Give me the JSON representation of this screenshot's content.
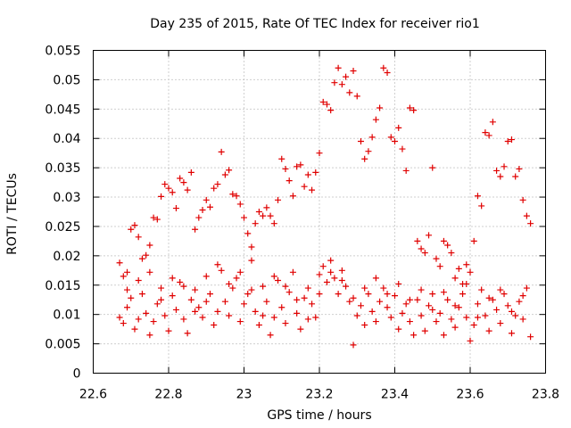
{
  "chart_data": {
    "type": "scatter",
    "title": "Day 235 of 2015, Rate Of TEC Index for receiver rio1",
    "xlabel": "GPS time / hours",
    "ylabel": "ROTI / TECUs",
    "xlim": [
      22.6,
      23.8
    ],
    "ylim": [
      0,
      0.055
    ],
    "xticks": [
      "22.6",
      "22.8",
      "23",
      "23.2",
      "23.4",
      "23.6",
      "23.8"
    ],
    "yticks": [
      "0",
      "0.005",
      "0.01",
      "0.015",
      "0.02",
      "0.025",
      "0.03",
      "0.035",
      "0.04",
      "0.045",
      "0.05",
      "0.055"
    ],
    "grid": true,
    "marker": "+",
    "color": "#e00000",
    "x_range_of_points": [
      22.668,
      23.757
    ],
    "series": [
      {
        "name": "rio1",
        "points": [
          [
            22.67,
            0.0188
          ],
          [
            22.68,
            0.0165
          ],
          [
            22.69,
            0.0172
          ],
          [
            22.7,
            0.0245
          ],
          [
            22.71,
            0.0252
          ],
          [
            22.72,
            0.0232
          ],
          [
            22.73,
            0.0195
          ],
          [
            22.74,
            0.0201
          ],
          [
            22.75,
            0.0218
          ],
          [
            22.76,
            0.0265
          ],
          [
            22.77,
            0.0262
          ],
          [
            22.78,
            0.0301
          ],
          [
            22.79,
            0.0322
          ],
          [
            22.8,
            0.0315
          ],
          [
            22.81,
            0.0308
          ],
          [
            22.82,
            0.0281
          ],
          [
            22.83,
            0.0332
          ],
          [
            22.84,
            0.0325
          ],
          [
            22.85,
            0.0312
          ],
          [
            22.86,
            0.0342
          ],
          [
            22.87,
            0.0245
          ],
          [
            22.88,
            0.0265
          ],
          [
            22.89,
            0.0278
          ],
          [
            22.9,
            0.0295
          ],
          [
            22.91,
            0.0283
          ],
          [
            22.92,
            0.0315
          ],
          [
            22.93,
            0.0322
          ],
          [
            22.94,
            0.0377
          ],
          [
            22.95,
            0.0338
          ],
          [
            22.96,
            0.0346
          ],
          [
            22.97,
            0.0305
          ],
          [
            22.98,
            0.0302
          ],
          [
            22.99,
            0.0288
          ],
          [
            23.0,
            0.0265
          ],
          [
            23.01,
            0.0238
          ],
          [
            23.02,
            0.0215
          ],
          [
            23.03,
            0.0255
          ],
          [
            23.04,
            0.0275
          ],
          [
            23.05,
            0.0268
          ],
          [
            23.06,
            0.0282
          ],
          [
            23.07,
            0.0268
          ],
          [
            23.08,
            0.0255
          ],
          [
            23.09,
            0.0295
          ],
          [
            23.1,
            0.0365
          ],
          [
            23.11,
            0.0348
          ],
          [
            23.12,
            0.0328
          ],
          [
            23.13,
            0.0302
          ],
          [
            23.14,
            0.0352
          ],
          [
            23.15,
            0.0355
          ],
          [
            23.16,
            0.0318
          ],
          [
            23.17,
            0.0338
          ],
          [
            23.18,
            0.0312
          ],
          [
            23.19,
            0.0342
          ],
          [
            23.2,
            0.0375
          ],
          [
            23.21,
            0.0462
          ],
          [
            23.22,
            0.0458
          ],
          [
            23.23,
            0.0448
          ],
          [
            23.24,
            0.0495
          ],
          [
            23.25,
            0.052
          ],
          [
            23.26,
            0.0492
          ],
          [
            23.27,
            0.0505
          ],
          [
            23.28,
            0.0478
          ],
          [
            23.29,
            0.0515
          ],
          [
            23.3,
            0.0472
          ],
          [
            23.31,
            0.0395
          ],
          [
            23.32,
            0.0365
          ],
          [
            23.33,
            0.0378
          ],
          [
            23.34,
            0.0402
          ],
          [
            23.35,
            0.0432
          ],
          [
            23.36,
            0.0452
          ],
          [
            23.37,
            0.052
          ],
          [
            23.38,
            0.0512
          ],
          [
            23.39,
            0.0402
          ],
          [
            23.4,
            0.0395
          ],
          [
            23.41,
            0.0418
          ],
          [
            23.42,
            0.0382
          ],
          [
            23.43,
            0.0345
          ],
          [
            23.44,
            0.0452
          ],
          [
            23.45,
            0.0448
          ],
          [
            23.46,
            0.0225
          ],
          [
            23.47,
            0.0212
          ],
          [
            23.48,
            0.0205
          ],
          [
            23.49,
            0.0235
          ],
          [
            23.5,
            0.035
          ],
          [
            23.51,
            0.0195
          ],
          [
            23.52,
            0.0182
          ],
          [
            23.53,
            0.0225
          ],
          [
            23.54,
            0.0218
          ],
          [
            23.55,
            0.0205
          ],
          [
            23.56,
            0.0162
          ],
          [
            23.57,
            0.0178
          ],
          [
            23.58,
            0.0152
          ],
          [
            23.59,
            0.0185
          ],
          [
            23.6,
            0.0172
          ],
          [
            23.61,
            0.0225
          ],
          [
            23.62,
            0.0302
          ],
          [
            23.63,
            0.0285
          ],
          [
            23.64,
            0.041
          ],
          [
            23.65,
            0.0405
          ],
          [
            23.66,
            0.0428
          ],
          [
            23.67,
            0.0345
          ],
          [
            23.68,
            0.0335
          ],
          [
            23.69,
            0.0352
          ],
          [
            23.7,
            0.0395
          ],
          [
            23.71,
            0.0398
          ],
          [
            23.72,
            0.0335
          ],
          [
            23.73,
            0.0348
          ],
          [
            23.74,
            0.0295
          ],
          [
            23.75,
            0.0268
          ],
          [
            23.76,
            0.0255
          ],
          [
            22.67,
            0.0095
          ],
          [
            22.68,
            0.0085
          ],
          [
            22.69,
            0.0112
          ],
          [
            22.7,
            0.0128
          ],
          [
            22.71,
            0.0075
          ],
          [
            22.72,
            0.0092
          ],
          [
            22.73,
            0.0135
          ],
          [
            22.74,
            0.0102
          ],
          [
            22.75,
            0.0065
          ],
          [
            22.76,
            0.0088
          ],
          [
            22.77,
            0.0118
          ],
          [
            22.78,
            0.0145
          ],
          [
            22.79,
            0.0098
          ],
          [
            22.8,
            0.0072
          ],
          [
            22.81,
            0.0132
          ],
          [
            22.82,
            0.0108
          ],
          [
            22.83,
            0.0155
          ],
          [
            22.84,
            0.0092
          ],
          [
            22.85,
            0.0068
          ],
          [
            22.86,
            0.0125
          ],
          [
            22.87,
            0.0142
          ],
          [
            22.88,
            0.0112
          ],
          [
            22.89,
            0.0095
          ],
          [
            22.9,
            0.0165
          ],
          [
            22.91,
            0.0135
          ],
          [
            22.92,
            0.0082
          ],
          [
            22.93,
            0.0105
          ],
          [
            22.94,
            0.0175
          ],
          [
            22.95,
            0.0122
          ],
          [
            22.96,
            0.0098
          ],
          [
            22.97,
            0.0145
          ],
          [
            22.98,
            0.0162
          ],
          [
            22.99,
            0.0088
          ],
          [
            23.0,
            0.0118
          ],
          [
            23.01,
            0.0135
          ],
          [
            23.02,
            0.0192
          ],
          [
            23.03,
            0.0105
          ],
          [
            23.04,
            0.0082
          ],
          [
            23.05,
            0.0148
          ],
          [
            23.06,
            0.0122
          ],
          [
            23.07,
            0.0065
          ],
          [
            23.08,
            0.0095
          ],
          [
            23.09,
            0.0158
          ],
          [
            23.1,
            0.0112
          ],
          [
            23.11,
            0.0085
          ],
          [
            23.12,
            0.0138
          ],
          [
            23.13,
            0.0172
          ],
          [
            23.14,
            0.0102
          ],
          [
            23.15,
            0.0075
          ],
          [
            23.16,
            0.0128
          ],
          [
            23.17,
            0.0145
          ],
          [
            23.18,
            0.0118
          ],
          [
            23.19,
            0.0095
          ],
          [
            23.2,
            0.0168
          ],
          [
            23.21,
            0.0182
          ],
          [
            23.22,
            0.0155
          ],
          [
            23.23,
            0.0192
          ],
          [
            23.24,
            0.0162
          ],
          [
            23.25,
            0.0135
          ],
          [
            23.26,
            0.0175
          ],
          [
            23.27,
            0.0148
          ],
          [
            23.28,
            0.0122
          ],
          [
            23.29,
            0.0048
          ],
          [
            23.3,
            0.0098
          ],
          [
            23.31,
            0.0115
          ],
          [
            23.32,
            0.0082
          ],
          [
            23.33,
            0.0135
          ],
          [
            23.34,
            0.0105
          ],
          [
            23.35,
            0.0088
          ],
          [
            23.36,
            0.0122
          ],
          [
            23.37,
            0.0145
          ],
          [
            23.38,
            0.0112
          ],
          [
            23.39,
            0.0095
          ],
          [
            23.4,
            0.0132
          ],
          [
            23.41,
            0.0075
          ],
          [
            23.42,
            0.0102
          ],
          [
            23.43,
            0.0118
          ],
          [
            23.44,
            0.0088
          ],
          [
            23.45,
            0.0065
          ],
          [
            23.46,
            0.0125
          ],
          [
            23.47,
            0.0098
          ],
          [
            23.48,
            0.0072
          ],
          [
            23.49,
            0.0115
          ],
          [
            23.5,
            0.0135
          ],
          [
            23.51,
            0.0088
          ],
          [
            23.52,
            0.0102
          ],
          [
            23.53,
            0.0065
          ],
          [
            23.54,
            0.0125
          ],
          [
            23.55,
            0.0092
          ],
          [
            23.56,
            0.0078
          ],
          [
            23.57,
            0.0112
          ],
          [
            23.58,
            0.0135
          ],
          [
            23.59,
            0.0095
          ],
          [
            23.6,
            0.0055
          ],
          [
            23.61,
            0.0082
          ],
          [
            23.62,
            0.0118
          ],
          [
            23.63,
            0.0142
          ],
          [
            23.64,
            0.0098
          ],
          [
            23.65,
            0.0072
          ],
          [
            23.66,
            0.0125
          ],
          [
            23.67,
            0.0108
          ],
          [
            23.68,
            0.0085
          ],
          [
            23.69,
            0.0135
          ],
          [
            23.7,
            0.0115
          ],
          [
            23.71,
            0.0068
          ],
          [
            23.72,
            0.0098
          ],
          [
            23.73,
            0.0122
          ],
          [
            23.74,
            0.0092
          ],
          [
            23.75,
            0.0145
          ],
          [
            23.76,
            0.0062
          ],
          [
            22.69,
            0.0142
          ],
          [
            22.72,
            0.0158
          ],
          [
            22.75,
            0.0172
          ],
          [
            22.78,
            0.0125
          ],
          [
            22.81,
            0.0162
          ],
          [
            22.84,
            0.0148
          ],
          [
            22.87,
            0.0105
          ],
          [
            22.9,
            0.0122
          ],
          [
            22.93,
            0.0185
          ],
          [
            22.96,
            0.0152
          ],
          [
            22.99,
            0.0172
          ],
          [
            23.02,
            0.0142
          ],
          [
            23.05,
            0.0098
          ],
          [
            23.08,
            0.0165
          ],
          [
            23.11,
            0.0148
          ],
          [
            23.14,
            0.0125
          ],
          [
            23.17,
            0.0092
          ],
          [
            23.2,
            0.0135
          ],
          [
            23.23,
            0.0172
          ],
          [
            23.26,
            0.0158
          ],
          [
            23.29,
            0.0128
          ],
          [
            23.32,
            0.0145
          ],
          [
            23.35,
            0.0162
          ],
          [
            23.38,
            0.0135
          ],
          [
            23.41,
            0.0152
          ],
          [
            23.44,
            0.0125
          ],
          [
            23.47,
            0.0142
          ],
          [
            23.5,
            0.0108
          ],
          [
            23.53,
            0.0138
          ],
          [
            23.56,
            0.0115
          ],
          [
            23.59,
            0.0152
          ],
          [
            23.62,
            0.0095
          ],
          [
            23.65,
            0.0128
          ],
          [
            23.68,
            0.0142
          ],
          [
            23.71,
            0.0105
          ],
          [
            23.74,
            0.0132
          ]
        ]
      }
    ]
  }
}
